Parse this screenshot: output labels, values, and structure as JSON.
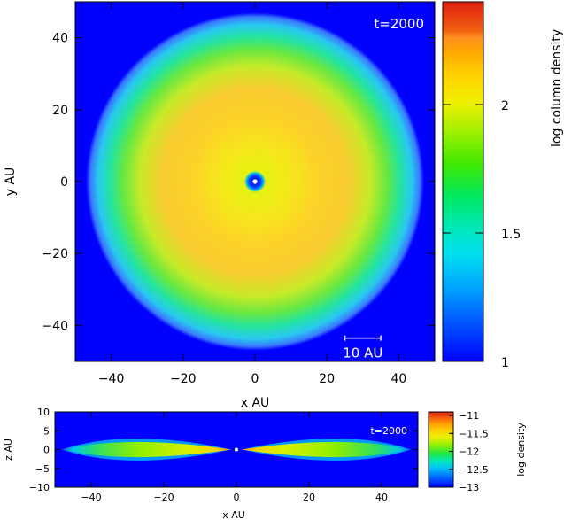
{
  "chart_data": [
    {
      "type": "heatmap",
      "view": "face-on column density",
      "time_label": "t=2000",
      "scale_bar_label": "10 AU",
      "scale_bar_length": 10,
      "xlabel": "x AU",
      "ylabel": "y AU",
      "xlim": [
        -50,
        50
      ],
      "ylim": [
        -50,
        50
      ],
      "xticks": [
        -40,
        -20,
        0,
        20,
        40
      ],
      "yticks": [
        -40,
        -20,
        0,
        20,
        40
      ],
      "colorbar": {
        "label": "log column density",
        "range": [
          1,
          2.4
        ],
        "ticks": [
          1,
          1.5,
          2
        ],
        "colormap": [
          "#0000ff",
          "#0050ff",
          "#00a0ff",
          "#00e8e8",
          "#00e890",
          "#20e000",
          "#90f000",
          "#e8f000",
          "#ffd000",
          "#ffa000",
          "#ff6a00",
          "#e82000"
        ]
      },
      "structure": {
        "inner_hole_radius": 1.2,
        "inner_ring_radius": 3,
        "peak_density_radius": 20,
        "outer_edge_radius": 47
      }
    },
    {
      "type": "heatmap",
      "view": "edge-on density",
      "time_label": "t=2000",
      "xlabel": "x AU",
      "ylabel": "z AU",
      "xlim": [
        -50,
        50
      ],
      "ylim": [
        -10,
        10
      ],
      "xticks": [
        -40,
        -20,
        0,
        20,
        40
      ],
      "yticks": [
        -10,
        -5,
        0,
        5,
        10
      ],
      "colorbar": {
        "label": "log density",
        "range": [
          -13,
          -10.9
        ],
        "ticks": [
          -13,
          -12.5,
          -12,
          -11.5,
          -11
        ],
        "colormap": [
          "#0000ff",
          "#0050ff",
          "#00a0ff",
          "#00e8e8",
          "#00e890",
          "#20e000",
          "#90f000",
          "#e8f000",
          "#ffd000",
          "#ffa000",
          "#ff6a00",
          "#e82000"
        ]
      },
      "structure": {
        "disk_outer_radius": 48,
        "max_half_thickness": 3,
        "gap_radius": 1.5
      }
    }
  ]
}
